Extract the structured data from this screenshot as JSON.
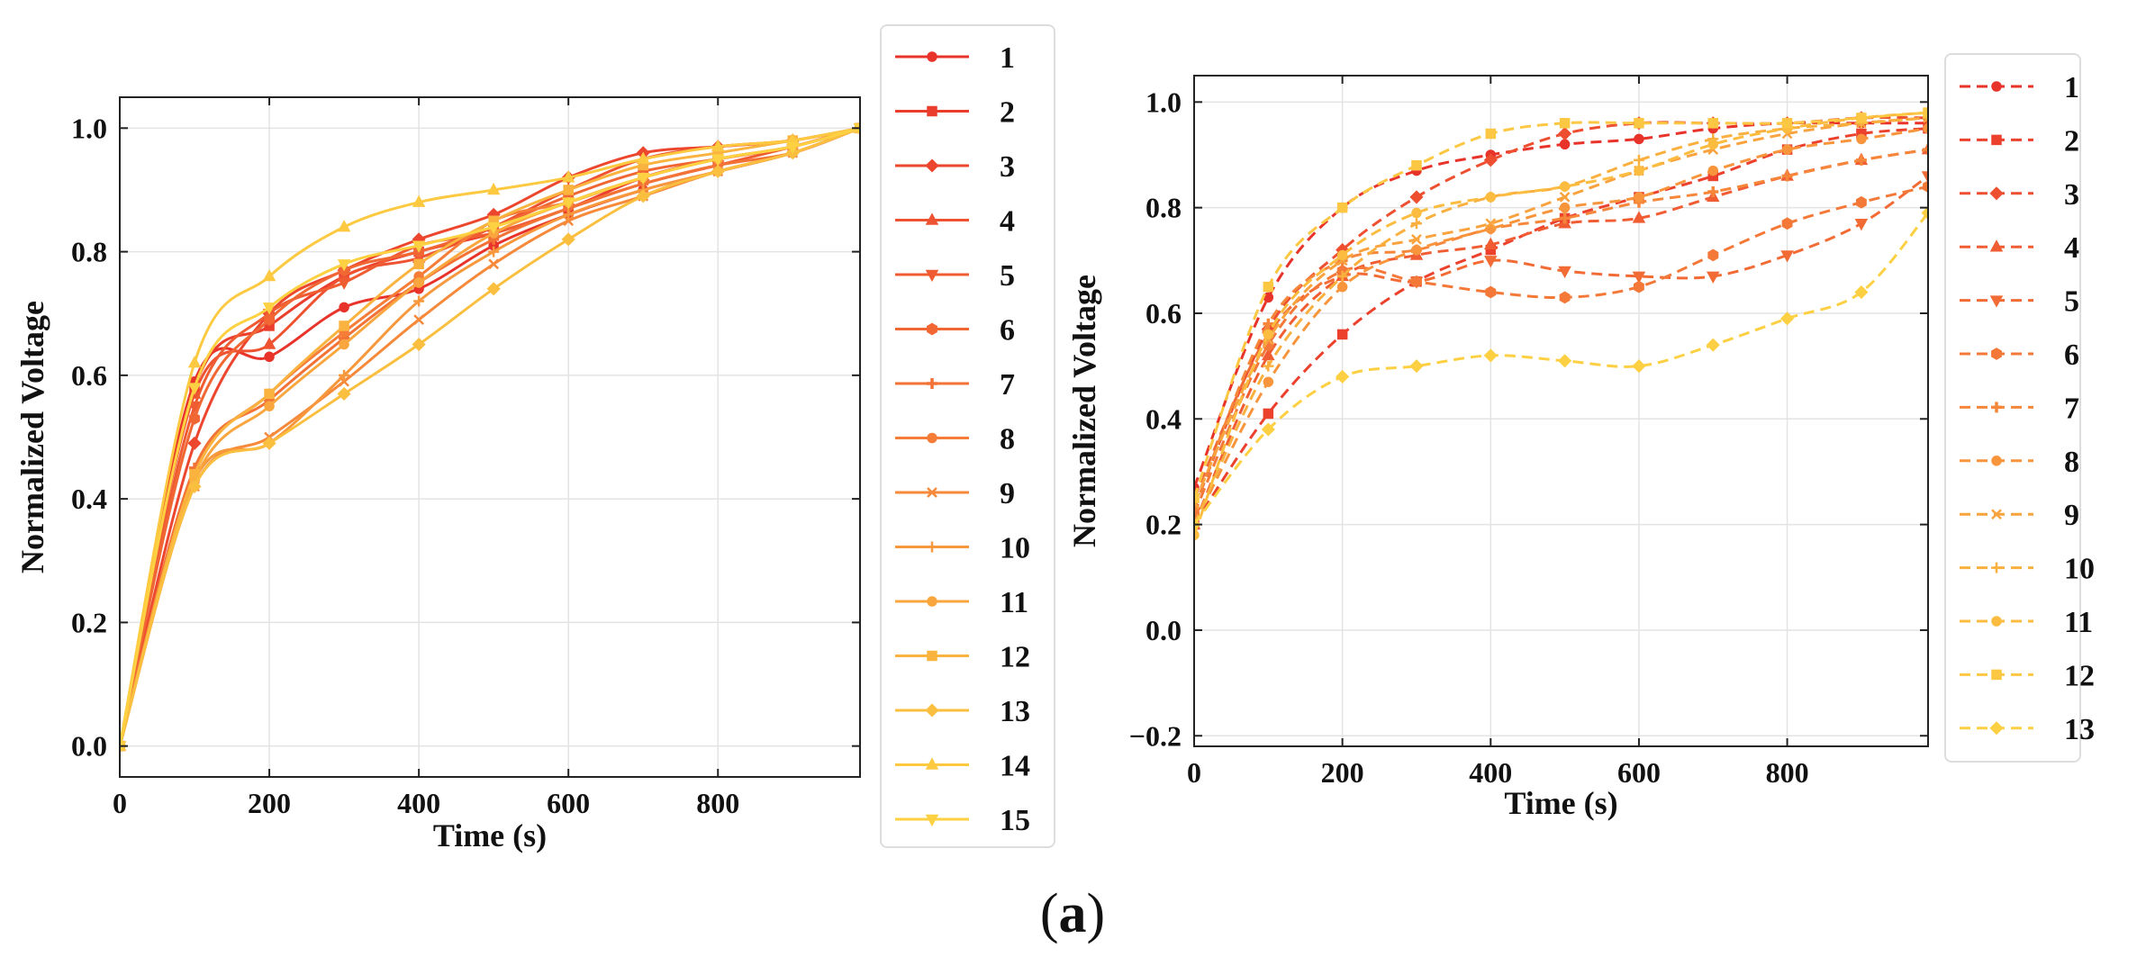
{
  "figure": {
    "caption_open": "(",
    "caption_letter": "a",
    "caption_close": ")"
  },
  "chart_data": [
    {
      "type": "line",
      "line_style": "solid",
      "xlabel": "Time (s)",
      "ylabel": "Normalized Voltage",
      "xlim": [
        0,
        990
      ],
      "ylim": [
        -0.05,
        1.05
      ],
      "xticks": [
        0,
        200,
        400,
        600,
        800
      ],
      "yticks": [
        0.0,
        0.2,
        0.4,
        0.6,
        0.8,
        1.0
      ],
      "ytick_labels": [
        "0.0",
        "0.2",
        "0.4",
        "0.6",
        "0.8",
        "1.0"
      ],
      "xtick_labels": [
        "0",
        "200",
        "400",
        "600",
        "800"
      ],
      "grid": true,
      "legend_position": "outside-right",
      "x": [
        0,
        100,
        200,
        300,
        400,
        500,
        600,
        700,
        800,
        900,
        990
      ],
      "series": [
        {
          "name": "1",
          "marker": "o",
          "color": "#e8332a",
          "values": [
            0.0,
            0.59,
            0.63,
            0.71,
            0.74,
            0.81,
            0.86,
            0.9,
            0.93,
            0.96,
            1.0
          ]
        },
        {
          "name": "2",
          "marker": "s",
          "color": "#ea3d2c",
          "values": [
            0.0,
            0.58,
            0.68,
            0.76,
            0.8,
            0.83,
            0.87,
            0.92,
            0.95,
            0.97,
            1.0
          ]
        },
        {
          "name": "3",
          "marker": "D",
          "color": "#ec472e",
          "values": [
            0.0,
            0.49,
            0.7,
            0.77,
            0.82,
            0.86,
            0.92,
            0.96,
            0.97,
            0.98,
            1.0
          ]
        },
        {
          "name": "4",
          "marker": "^",
          "color": "#ee5230",
          "values": [
            0.0,
            0.57,
            0.65,
            0.76,
            0.79,
            0.84,
            0.9,
            0.95,
            0.97,
            0.98,
            1.0
          ]
        },
        {
          "name": "5",
          "marker": "v",
          "color": "#f05c32",
          "values": [
            0.0,
            0.55,
            0.7,
            0.75,
            0.81,
            0.83,
            0.87,
            0.91,
            0.94,
            0.97,
            1.0
          ]
        },
        {
          "name": "6",
          "marker": "h",
          "color": "#f16734",
          "values": [
            0.0,
            0.53,
            0.69,
            0.77,
            0.8,
            0.84,
            0.89,
            0.93,
            0.95,
            0.97,
            1.0
          ]
        },
        {
          "name": "7",
          "marker": "P",
          "color": "#f37236",
          "values": [
            0.0,
            0.45,
            0.56,
            0.66,
            0.75,
            0.82,
            0.87,
            0.91,
            0.94,
            0.96,
            1.0
          ]
        },
        {
          "name": "8",
          "marker": "o",
          "color": "#f57d38",
          "values": [
            0.0,
            0.44,
            0.57,
            0.67,
            0.76,
            0.85,
            0.88,
            0.92,
            0.95,
            0.97,
            1.0
          ]
        },
        {
          "name": "9",
          "marker": "x",
          "color": "#f6893a",
          "values": [
            0.0,
            0.42,
            0.5,
            0.59,
            0.69,
            0.78,
            0.85,
            0.89,
            0.93,
            0.96,
            1.0
          ]
        },
        {
          "name": "10",
          "marker": "+",
          "color": "#f8983c",
          "values": [
            0.0,
            0.43,
            0.49,
            0.6,
            0.72,
            0.8,
            0.86,
            0.9,
            0.93,
            0.96,
            1.0
          ]
        },
        {
          "name": "11",
          "marker": "o",
          "color": "#f9a63e",
          "values": [
            0.0,
            0.43,
            0.55,
            0.65,
            0.75,
            0.83,
            0.88,
            0.92,
            0.95,
            0.97,
            1.0
          ]
        },
        {
          "name": "12",
          "marker": "s",
          "color": "#fab33f",
          "values": [
            0.0,
            0.44,
            0.57,
            0.68,
            0.78,
            0.85,
            0.9,
            0.94,
            0.96,
            0.98,
            1.0
          ]
        },
        {
          "name": "13",
          "marker": "D",
          "color": "#fbbf40",
          "values": [
            0.0,
            0.42,
            0.49,
            0.57,
            0.65,
            0.74,
            0.82,
            0.89,
            0.93,
            0.96,
            1.0
          ]
        },
        {
          "name": "14",
          "marker": "^",
          "color": "#fcc941",
          "values": [
            0.0,
            0.62,
            0.76,
            0.84,
            0.88,
            0.9,
            0.92,
            0.95,
            0.97,
            0.98,
            1.0
          ]
        },
        {
          "name": "15",
          "marker": "v",
          "color": "#fdd142",
          "values": [
            0.0,
            0.58,
            0.71,
            0.78,
            0.81,
            0.84,
            0.88,
            0.92,
            0.95,
            0.97,
            1.0
          ]
        }
      ]
    },
    {
      "type": "line",
      "line_style": "dashed",
      "xlabel": "Time (s)",
      "ylabel": "Normalized Voltage",
      "xlim": [
        0,
        990
      ],
      "ylim": [
        -0.22,
        1.05
      ],
      "xticks": [
        0,
        200,
        400,
        600,
        800
      ],
      "yticks": [
        -0.2,
        0.0,
        0.2,
        0.4,
        0.6,
        0.8,
        1.0
      ],
      "ytick_labels": [
        "−0.2",
        "0.0",
        "0.2",
        "0.4",
        "0.6",
        "0.8",
        "1.0"
      ],
      "xtick_labels": [
        "0",
        "200",
        "400",
        "600",
        "800"
      ],
      "grid": true,
      "legend_position": "outside-right",
      "x": [
        0,
        100,
        200,
        300,
        400,
        500,
        600,
        700,
        800,
        900,
        990
      ],
      "series": [
        {
          "name": "1",
          "marker": "o",
          "color": "#e8332a",
          "values": [
            0.27,
            0.63,
            0.8,
            0.87,
            0.9,
            0.92,
            0.93,
            0.95,
            0.96,
            0.96,
            0.96
          ]
        },
        {
          "name": "2",
          "marker": "s",
          "color": "#eb412d",
          "values": [
            0.2,
            0.41,
            0.56,
            0.66,
            0.72,
            0.78,
            0.82,
            0.86,
            0.91,
            0.94,
            0.95
          ]
        },
        {
          "name": "3",
          "marker": "D",
          "color": "#ee4f30",
          "values": [
            0.23,
            0.57,
            0.72,
            0.82,
            0.89,
            0.94,
            0.96,
            0.96,
            0.96,
            0.97,
            0.97
          ]
        },
        {
          "name": "4",
          "marker": "^",
          "color": "#f05d33",
          "values": [
            0.2,
            0.52,
            0.67,
            0.71,
            0.73,
            0.77,
            0.78,
            0.82,
            0.86,
            0.89,
            0.91
          ]
        },
        {
          "name": "5",
          "marker": "v",
          "color": "#f26b35",
          "values": [
            0.25,
            0.56,
            0.67,
            0.66,
            0.7,
            0.68,
            0.67,
            0.67,
            0.71,
            0.77,
            0.86
          ]
        },
        {
          "name": "6",
          "marker": "h",
          "color": "#f47938",
          "values": [
            0.22,
            0.54,
            0.68,
            0.66,
            0.64,
            0.63,
            0.65,
            0.71,
            0.77,
            0.81,
            0.84
          ]
        },
        {
          "name": "7",
          "marker": "P",
          "color": "#f6873a",
          "values": [
            0.23,
            0.58,
            0.7,
            0.72,
            0.76,
            0.78,
            0.81,
            0.83,
            0.86,
            0.89,
            0.91
          ]
        },
        {
          "name": "8",
          "marker": "o",
          "color": "#f8953c",
          "values": [
            0.2,
            0.47,
            0.65,
            0.72,
            0.76,
            0.8,
            0.82,
            0.87,
            0.91,
            0.93,
            0.95
          ]
        },
        {
          "name": "9",
          "marker": "x",
          "color": "#f9a33e",
          "values": [
            0.24,
            0.55,
            0.7,
            0.74,
            0.77,
            0.82,
            0.87,
            0.91,
            0.94,
            0.96,
            0.97
          ]
        },
        {
          "name": "10",
          "marker": "+",
          "color": "#fab03f",
          "values": [
            0.2,
            0.5,
            0.67,
            0.77,
            0.82,
            0.84,
            0.89,
            0.93,
            0.95,
            0.96,
            0.97
          ]
        },
        {
          "name": "11",
          "marker": "o",
          "color": "#fbbc40",
          "values": [
            0.18,
            0.56,
            0.71,
            0.79,
            0.82,
            0.84,
            0.87,
            0.92,
            0.95,
            0.97,
            0.98
          ]
        },
        {
          "name": "12",
          "marker": "s",
          "color": "#fcc742",
          "values": [
            0.25,
            0.65,
            0.8,
            0.88,
            0.94,
            0.96,
            0.96,
            0.96,
            0.96,
            0.97,
            0.98
          ]
        },
        {
          "name": "13",
          "marker": "D",
          "color": "#fdd043",
          "values": [
            0.2,
            0.38,
            0.48,
            0.5,
            0.52,
            0.51,
            0.5,
            0.54,
            0.59,
            0.64,
            0.79
          ]
        }
      ]
    }
  ]
}
